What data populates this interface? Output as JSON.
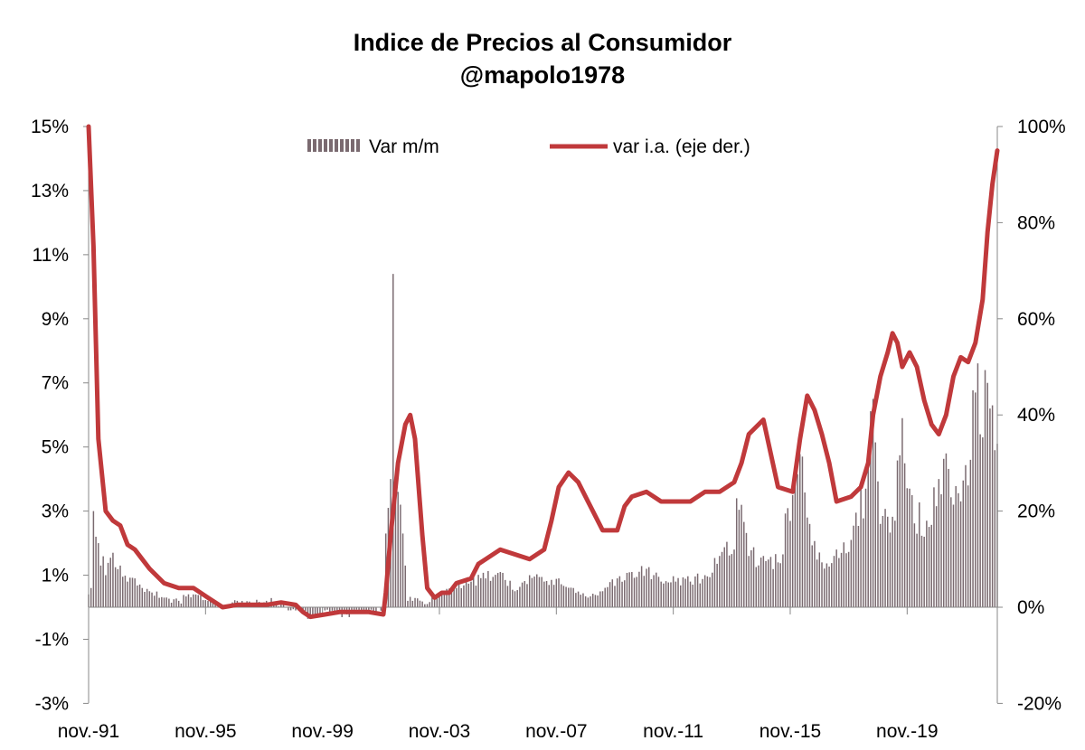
{
  "chart_data": {
    "type": "bar",
    "title": "Indice de Precios al Consumidor",
    "subtitle": "@mapolo1978",
    "x_tick_labels": [
      "nov.-91",
      "nov.-95",
      "nov.-99",
      "nov.-03",
      "nov.-07",
      "nov.-11",
      "nov.-15",
      "nov.-19"
    ],
    "x_range": [
      "1991-11",
      "2022-12"
    ],
    "y_left": {
      "range": [
        -3,
        15
      ],
      "ticks": [
        -3,
        -1,
        1,
        3,
        5,
        7,
        9,
        11,
        13,
        15
      ],
      "tick_labels": [
        "-3%",
        "-1%",
        "1%",
        "3%",
        "5%",
        "7%",
        "9%",
        "11%",
        "13%",
        "15%"
      ]
    },
    "y_right": {
      "range": [
        -20,
        100
      ],
      "ticks": [
        -20,
        0,
        20,
        40,
        60,
        80,
        100
      ],
      "tick_labels": [
        "-20%",
        "0%",
        "20%",
        "40%",
        "60%",
        "80%",
        "100%"
      ]
    },
    "legend": {
      "position": "top",
      "entries": [
        "Var m/m",
        "var i.a. (eje der.)"
      ]
    },
    "grid": false,
    "colors": {
      "bars": "#7a6a70",
      "line": "#c0393b",
      "axis": "#888888"
    },
    "series": [
      {
        "name": "Var m/m",
        "kind": "bar",
        "axis": "left",
        "monthly_anchors": [
          [
            "1991-11",
            0.4
          ],
          [
            "1991-12",
            0.6
          ],
          [
            "1992-01",
            3.0
          ],
          [
            "1992-02",
            2.2
          ],
          [
            "1992-03",
            2.0
          ],
          [
            "1992-06",
            1.0
          ],
          [
            "1992-09",
            1.7
          ],
          [
            "1992-12",
            1.3
          ],
          [
            "1993-03",
            0.8
          ],
          [
            "1993-06",
            0.9
          ],
          [
            "1993-09",
            0.6
          ],
          [
            "1993-12",
            0.5
          ],
          [
            "1994-06",
            0.3
          ],
          [
            "1994-12",
            0.2
          ],
          [
            "1995-06",
            0.4
          ],
          [
            "1995-12",
            0.2
          ],
          [
            "1996-06",
            0.0
          ],
          [
            "1996-12",
            0.2
          ],
          [
            "1997-06",
            0.1
          ],
          [
            "1997-12",
            0.2
          ],
          [
            "1998-06",
            0.1
          ],
          [
            "1998-12",
            -0.1
          ],
          [
            "1999-06",
            -0.3
          ],
          [
            "1999-12",
            -0.1
          ],
          [
            "2000-06",
            -0.2
          ],
          [
            "2000-12",
            -0.2
          ],
          [
            "2001-06",
            -0.1
          ],
          [
            "2001-12",
            -0.1
          ],
          [
            "2002-01",
            2.3
          ],
          [
            "2002-02",
            3.1
          ],
          [
            "2002-03",
            4.0
          ],
          [
            "2002-04",
            10.4
          ],
          [
            "2002-05",
            4.0
          ],
          [
            "2002-06",
            3.6
          ],
          [
            "2002-07",
            3.2
          ],
          [
            "2002-08",
            2.3
          ],
          [
            "2002-09",
            1.3
          ],
          [
            "2002-10",
            0.2
          ],
          [
            "2002-12",
            0.2
          ],
          [
            "2003-06",
            0.1
          ],
          [
            "2003-12",
            0.4
          ],
          [
            "2004-06",
            0.6
          ],
          [
            "2004-12",
            0.8
          ],
          [
            "2005-06",
            0.9
          ],
          [
            "2005-12",
            1.1
          ],
          [
            "2006-06",
            0.5
          ],
          [
            "2006-12",
            1.0
          ],
          [
            "2007-06",
            0.8
          ],
          [
            "2007-12",
            0.9
          ],
          [
            "2008-06",
            0.6
          ],
          [
            "2008-12",
            0.3
          ],
          [
            "2009-06",
            0.5
          ],
          [
            "2009-12",
            0.9
          ],
          [
            "2010-06",
            1.1
          ],
          [
            "2010-12",
            1.2
          ],
          [
            "2011-06",
            0.8
          ],
          [
            "2011-12",
            0.8
          ],
          [
            "2012-06",
            0.8
          ],
          [
            "2012-12",
            1.0
          ],
          [
            "2013-06",
            1.6
          ],
          [
            "2013-12",
            1.8
          ],
          [
            "2014-01",
            3.4
          ],
          [
            "2014-06",
            1.6
          ],
          [
            "2014-12",
            1.6
          ],
          [
            "2015-06",
            1.4
          ],
          [
            "2015-12",
            3.5
          ],
          [
            "2016-04",
            4.7
          ],
          [
            "2016-06",
            2.8
          ],
          [
            "2016-12",
            1.4
          ],
          [
            "2017-06",
            1.8
          ],
          [
            "2017-12",
            2.1
          ],
          [
            "2018-06",
            3.7
          ],
          [
            "2018-09",
            6.5
          ],
          [
            "2018-12",
            2.6
          ],
          [
            "2019-06",
            2.7
          ],
          [
            "2019-09",
            5.9
          ],
          [
            "2019-12",
            3.7
          ],
          [
            "2020-06",
            2.2
          ],
          [
            "2020-12",
            4.0
          ],
          [
            "2021-03",
            4.8
          ],
          [
            "2021-06",
            3.2
          ],
          [
            "2021-12",
            3.8
          ],
          [
            "2022-03",
            6.7
          ],
          [
            "2022-06",
            5.3
          ],
          [
            "2022-07",
            7.4
          ],
          [
            "2022-08",
            7.0
          ],
          [
            "2022-09",
            6.2
          ],
          [
            "2022-10",
            6.3
          ],
          [
            "2022-11",
            4.9
          ],
          [
            "2022-12",
            5.1
          ]
        ]
      },
      {
        "name": "var i.a. (eje der.)",
        "kind": "line",
        "axis": "right",
        "points": [
          [
            "1991-11",
            100
          ],
          [
            "1992-01",
            75
          ],
          [
            "1992-03",
            35
          ],
          [
            "1992-06",
            20
          ],
          [
            "1992-09",
            18
          ],
          [
            "1992-12",
            17
          ],
          [
            "1993-03",
            13
          ],
          [
            "1993-06",
            12
          ],
          [
            "1993-09",
            10
          ],
          [
            "1993-12",
            8
          ],
          [
            "1994-06",
            5
          ],
          [
            "1994-12",
            4
          ],
          [
            "1995-06",
            4
          ],
          [
            "1995-12",
            2
          ],
          [
            "1996-06",
            0
          ],
          [
            "1996-12",
            0.5
          ],
          [
            "1997-06",
            0.5
          ],
          [
            "1997-12",
            0.5
          ],
          [
            "1998-06",
            1
          ],
          [
            "1998-12",
            0.5
          ],
          [
            "1999-03",
            -1
          ],
          [
            "1999-06",
            -2
          ],
          [
            "1999-12",
            -1.5
          ],
          [
            "2000-06",
            -1
          ],
          [
            "2000-12",
            -1
          ],
          [
            "2001-06",
            -1
          ],
          [
            "2001-12",
            -1.5
          ],
          [
            "2002-01",
            3
          ],
          [
            "2002-03",
            15
          ],
          [
            "2002-06",
            30
          ],
          [
            "2002-09",
            38
          ],
          [
            "2002-11",
            40
          ],
          [
            "2003-01",
            35
          ],
          [
            "2003-04",
            15
          ],
          [
            "2003-06",
            4
          ],
          [
            "2003-09",
            2
          ],
          [
            "2003-12",
            3
          ],
          [
            "2004-03",
            3
          ],
          [
            "2004-06",
            5
          ],
          [
            "2004-12",
            6
          ],
          [
            "2005-03",
            9
          ],
          [
            "2005-06",
            10
          ],
          [
            "2005-12",
            12
          ],
          [
            "2006-06",
            11
          ],
          [
            "2006-12",
            10
          ],
          [
            "2007-06",
            12
          ],
          [
            "2007-09",
            18
          ],
          [
            "2007-12",
            25
          ],
          [
            "2008-04",
            28
          ],
          [
            "2008-08",
            26
          ],
          [
            "2008-12",
            22
          ],
          [
            "2009-06",
            16
          ],
          [
            "2009-12",
            16
          ],
          [
            "2010-03",
            21
          ],
          [
            "2010-06",
            23
          ],
          [
            "2010-12",
            24
          ],
          [
            "2011-06",
            22
          ],
          [
            "2011-12",
            22
          ],
          [
            "2012-06",
            22
          ],
          [
            "2012-12",
            24
          ],
          [
            "2013-06",
            24
          ],
          [
            "2013-12",
            26
          ],
          [
            "2014-03",
            30
          ],
          [
            "2014-06",
            36
          ],
          [
            "2014-12",
            39
          ],
          [
            "2015-03",
            32
          ],
          [
            "2015-06",
            25
          ],
          [
            "2015-12",
            24
          ],
          [
            "2016-03",
            35
          ],
          [
            "2016-06",
            44
          ],
          [
            "2016-09",
            41
          ],
          [
            "2016-12",
            36
          ],
          [
            "2017-03",
            30
          ],
          [
            "2017-06",
            22
          ],
          [
            "2017-12",
            23
          ],
          [
            "2018-04",
            25
          ],
          [
            "2018-07",
            30
          ],
          [
            "2018-09",
            40
          ],
          [
            "2018-12",
            48
          ],
          [
            "2019-03",
            53
          ],
          [
            "2019-05",
            57
          ],
          [
            "2019-07",
            55
          ],
          [
            "2019-09",
            50
          ],
          [
            "2019-12",
            53
          ],
          [
            "2020-03",
            50
          ],
          [
            "2020-06",
            43
          ],
          [
            "2020-09",
            38
          ],
          [
            "2020-12",
            36
          ],
          [
            "2021-03",
            40
          ],
          [
            "2021-06",
            48
          ],
          [
            "2021-09",
            52
          ],
          [
            "2021-12",
            51
          ],
          [
            "2022-03",
            55
          ],
          [
            "2022-06",
            64
          ],
          [
            "2022-08",
            78
          ],
          [
            "2022-10",
            88
          ],
          [
            "2022-12",
            95
          ]
        ]
      }
    ]
  }
}
